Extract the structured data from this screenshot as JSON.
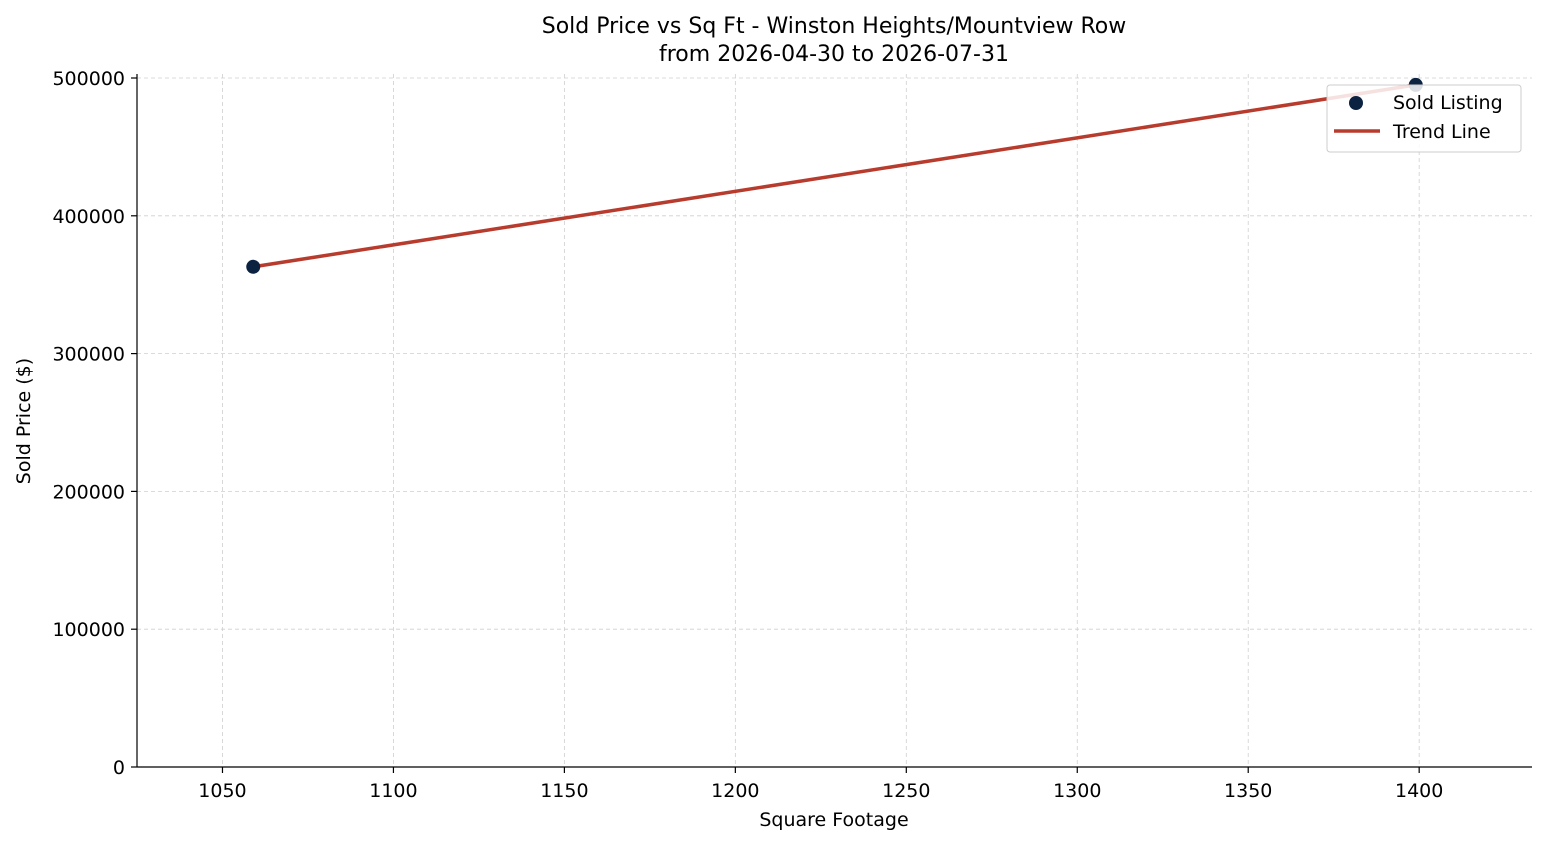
{
  "chart_data": {
    "type": "scatter",
    "title": "Sold Price vs Sq Ft - Winston Heights/Mountview Row",
    "subtitle": "from 2026-04-30 to 2026-07-31",
    "xlabel": "Square Footage",
    "ylabel": "Sold Price ($)",
    "xlim": [
      1025,
      1433
    ],
    "ylim": [
      0,
      500000
    ],
    "xticks": [
      1050,
      1100,
      1150,
      1200,
      1250,
      1300,
      1350,
      1400
    ],
    "yticks": [
      0,
      100000,
      200000,
      300000,
      400000,
      500000
    ],
    "xtick_labels": [
      "1050",
      "1100",
      "1150",
      "1200",
      "1250",
      "1300",
      "1350",
      "1400"
    ],
    "ytick_labels": [
      "0",
      "100000",
      "200000",
      "300000",
      "400000",
      "500000"
    ],
    "grid": true,
    "legend_position": "top-right",
    "series": [
      {
        "name": "Sold Listing",
        "kind": "scatter",
        "color": "#0b2240",
        "points": [
          {
            "x": 1059,
            "y": 363000
          },
          {
            "x": 1399,
            "y": 495000
          }
        ]
      },
      {
        "name": "Trend Line",
        "kind": "line",
        "color": "#b83c2e",
        "points": [
          {
            "x": 1059,
            "y": 363000
          },
          {
            "x": 1399,
            "y": 495000
          }
        ]
      }
    ]
  }
}
